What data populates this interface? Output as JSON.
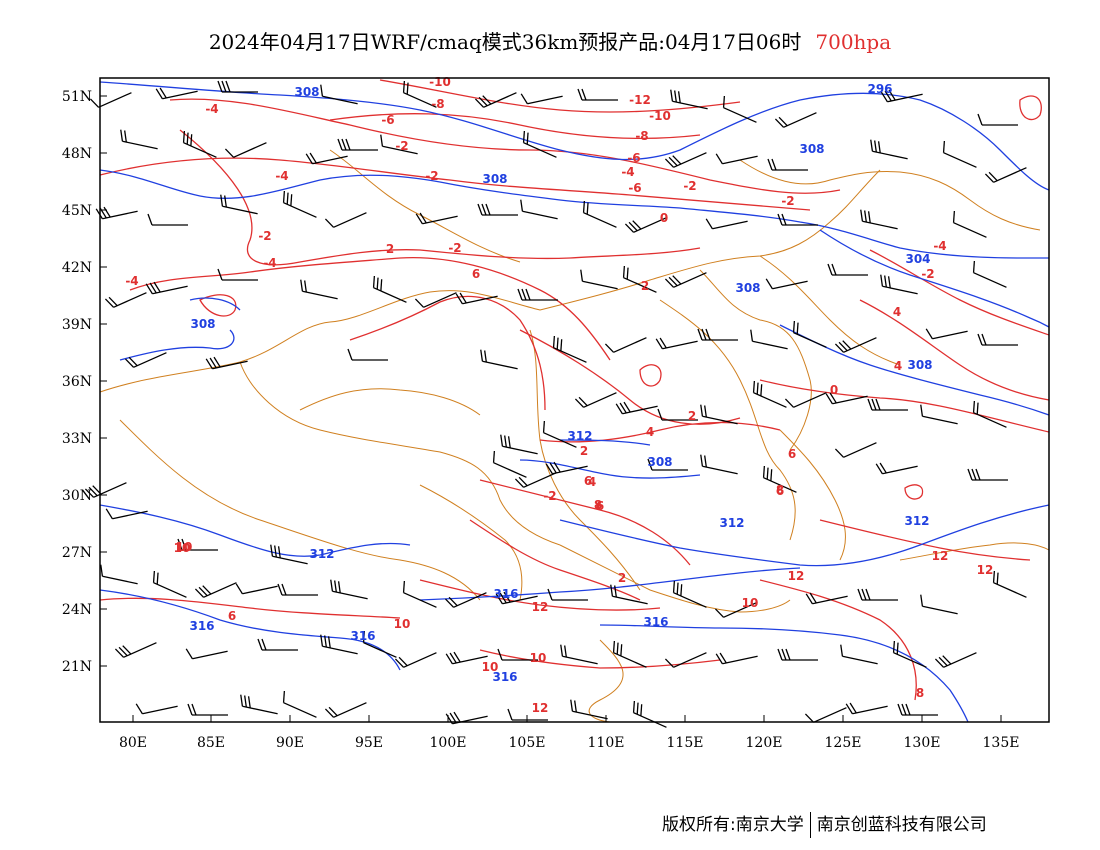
{
  "title": {
    "main": "2024年04月17日WRF/cmaq模式36km预报产品:04月17日06时",
    "level": "700hpa"
  },
  "axes": {
    "lat_labels": [
      "51N",
      "48N",
      "45N",
      "42N",
      "39N",
      "36N",
      "33N",
      "30N",
      "27N",
      "24N",
      "21N"
    ],
    "lon_labels": [
      "80E",
      "85E",
      "90E",
      "95E",
      "100E",
      "105E",
      "110E",
      "115E",
      "120E",
      "125E",
      "130E",
      "135E"
    ]
  },
  "contours": {
    "height_color": "#2040e0",
    "temperature_color": "#e03030",
    "border_color": "#d08020",
    "height_labels": [
      "308",
      "296",
      "308",
      "308",
      "304",
      "308",
      "308",
      "312",
      "308",
      "308",
      "312",
      "312",
      "312",
      "316",
      "316",
      "316",
      "316",
      "316"
    ],
    "temperature_labels": [
      "-10",
      "-8",
      "-12",
      "-10",
      "-4",
      "-6",
      "-8",
      "-6",
      "-2",
      "-4",
      "-6",
      "-2",
      "-4",
      "-2",
      "-2",
      "0",
      "-2",
      "-4",
      "-4",
      "-4",
      "-2",
      "2",
      "-2",
      "4",
      "4",
      "6",
      "2",
      "0",
      "2",
      "4",
      "2",
      "-2",
      "4",
      "6",
      "6",
      "8",
      "10",
      "2",
      "6",
      "10",
      "10",
      "12",
      "12",
      "10",
      "12",
      "12",
      "12",
      "8",
      "10",
      "6",
      "6",
      "8",
      "10"
    ]
  },
  "footer": {
    "left": "版权所有:南京大学",
    "right": "南京创蓝科技有限公司"
  }
}
